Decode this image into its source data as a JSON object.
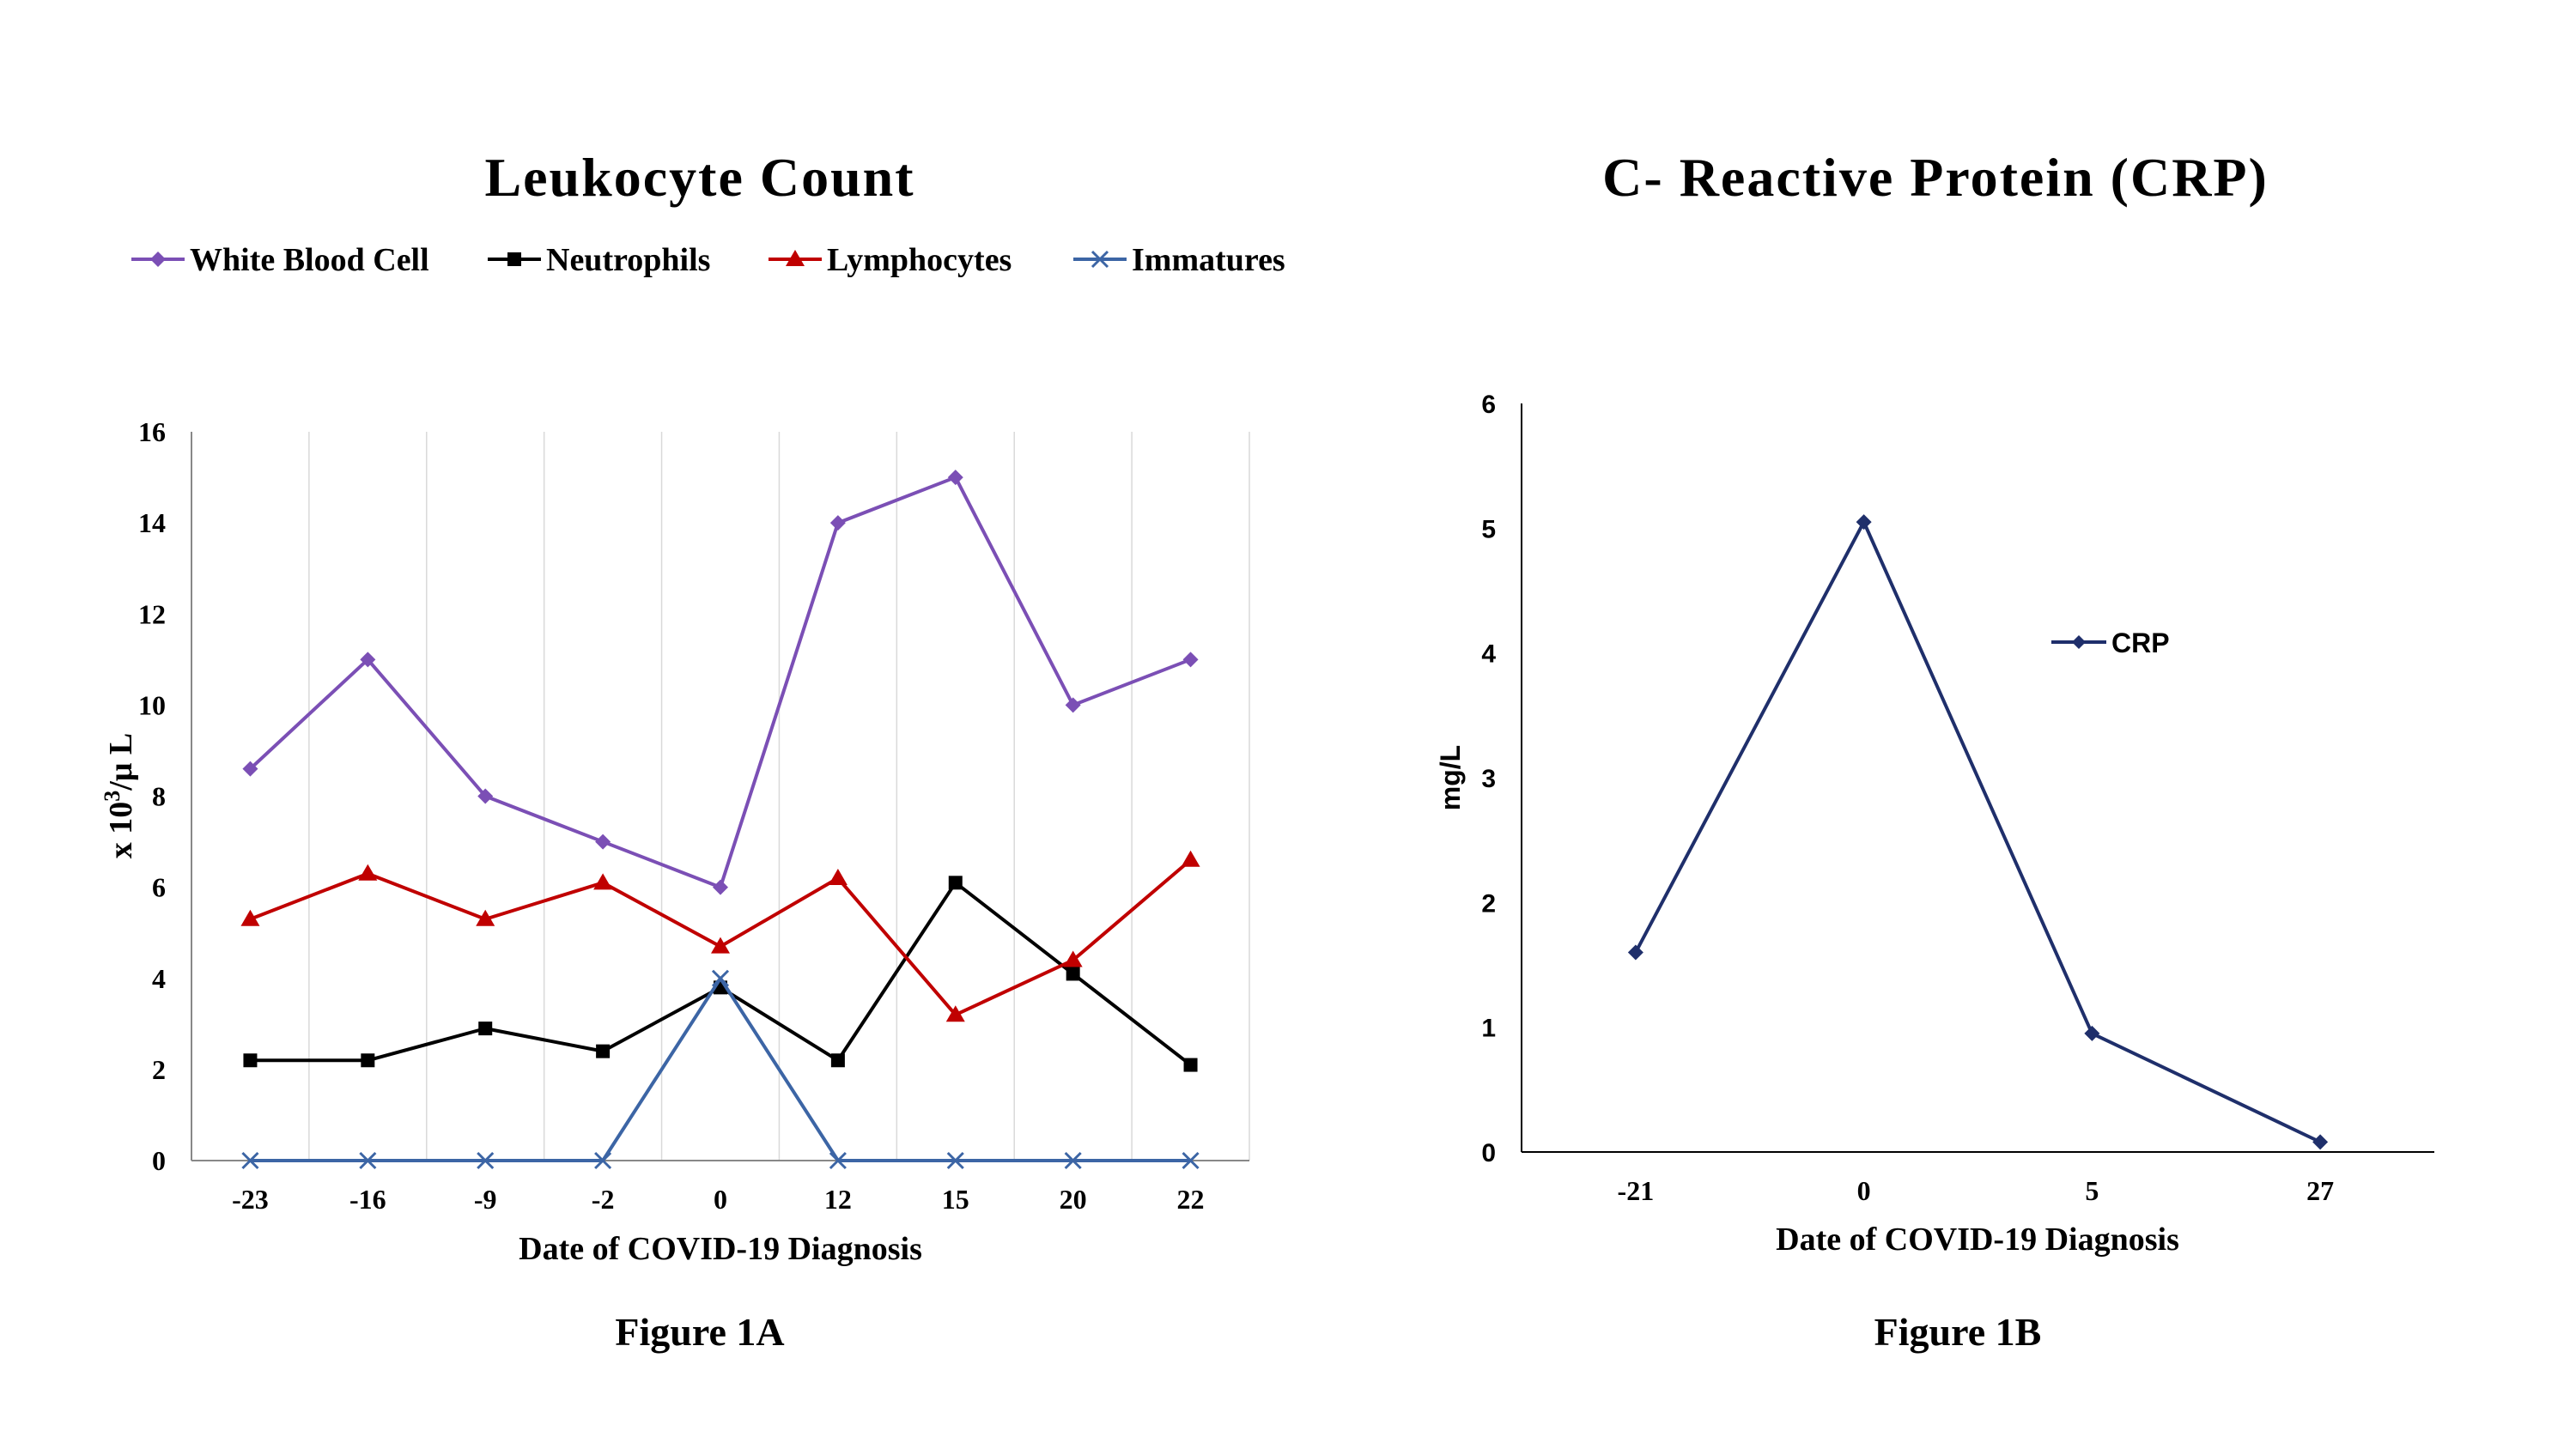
{
  "chart_data": [
    {
      "type": "line",
      "title": "Leukocyte Count",
      "caption": "Figure 1A",
      "xlabel": "Date of COVID-19 Diagnosis",
      "ylabel_main": "x 10",
      "ylabel_sup": "3",
      "ylabel_rest": "/μ L",
      "categories": [
        "-23",
        "-16",
        "-9",
        "-2",
        "0",
        "12",
        "15",
        "20",
        "22"
      ],
      "ylim": [
        0,
        16
      ],
      "yticks": [
        "0",
        "2",
        "4",
        "6",
        "8",
        "10",
        "12",
        "14",
        "16"
      ],
      "grid": "vertical",
      "legend_position": "top",
      "series": [
        {
          "name": "White Blood Cell",
          "color": "#7B4FB5",
          "marker": "diamond",
          "values": [
            8.6,
            11,
            8,
            7,
            6,
            14,
            15,
            10,
            11
          ]
        },
        {
          "name": "Neutrophils",
          "color": "#000000",
          "marker": "square",
          "values": [
            2.2,
            2.2,
            2.9,
            2.4,
            3.8,
            2.2,
            6.1,
            4.1,
            2.1
          ]
        },
        {
          "name": "Lymphocytes",
          "color": "#C00000",
          "marker": "triangle",
          "values": [
            5.3,
            6.3,
            5.3,
            6.1,
            4.7,
            6.2,
            3.2,
            4.4,
            6.6
          ]
        },
        {
          "name": "Immatures",
          "color": "#3C65A5",
          "marker": "x",
          "values": [
            0,
            0,
            0,
            0,
            4,
            0,
            0,
            0,
            0
          ]
        }
      ]
    },
    {
      "type": "line",
      "title": "C- Reactive Protein (CRP)",
      "caption": "Figure 1B",
      "xlabel": "Date of COVID-19 Diagnosis",
      "ylabel": "mg/L",
      "categories": [
        "-21",
        "0",
        "5",
        "27"
      ],
      "ylim": [
        0,
        6
      ],
      "yticks": [
        "0",
        "1",
        "2",
        "3",
        "4",
        "5",
        "6"
      ],
      "legend_position": "right",
      "series": [
        {
          "name": "CRP",
          "color": "#1F2F6B",
          "marker": "diamond",
          "values": [
            1.6,
            5.05,
            0.95,
            0.08
          ]
        }
      ]
    }
  ]
}
